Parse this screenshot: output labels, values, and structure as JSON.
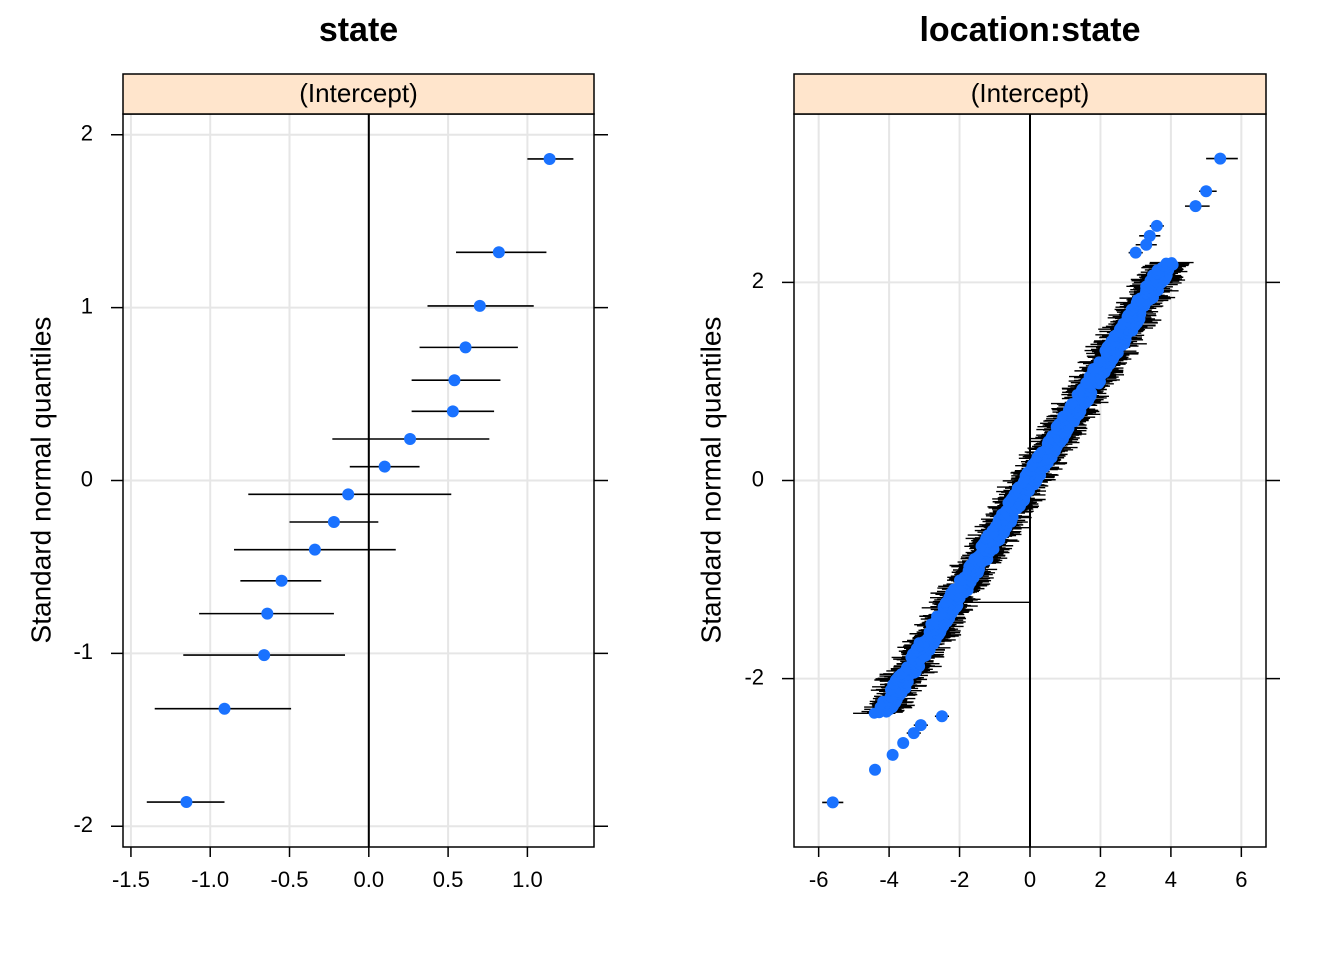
{
  "chart_data": [
    {
      "type": "scatter",
      "title": "state",
      "strip_label": "(Intercept)",
      "ylabel": "Standard normal quantiles",
      "xlabel": "",
      "xlim": [
        -1.55,
        1.42
      ],
      "ylim": [
        -2.12,
        2.12
      ],
      "x_ticks": [
        "-1.5",
        "-1.0",
        "-0.5",
        "0.0",
        "0.5",
        "1.0"
      ],
      "y_ticks": [
        "-2",
        "-1",
        "0",
        "1",
        "2"
      ],
      "reference_line_x": 0,
      "grid": true,
      "points": [
        {
          "x": -1.15,
          "y": -1.86,
          "lo": -1.4,
          "hi": -0.91
        },
        {
          "x": -0.91,
          "y": -1.32,
          "lo": -1.35,
          "hi": -0.49
        },
        {
          "x": -0.66,
          "y": -1.01,
          "lo": -1.17,
          "hi": -0.15
        },
        {
          "x": -0.64,
          "y": -0.77,
          "lo": -1.07,
          "hi": -0.22
        },
        {
          "x": -0.55,
          "y": -0.58,
          "lo": -0.81,
          "hi": -0.3
        },
        {
          "x": -0.34,
          "y": -0.4,
          "lo": -0.85,
          "hi": 0.17
        },
        {
          "x": -0.22,
          "y": -0.24,
          "lo": -0.5,
          "hi": 0.06
        },
        {
          "x": -0.13,
          "y": -0.08,
          "lo": -0.76,
          "hi": 0.52
        },
        {
          "x": 0.1,
          "y": 0.08,
          "lo": -0.12,
          "hi": 0.32
        },
        {
          "x": 0.26,
          "y": 0.24,
          "lo": -0.23,
          "hi": 0.76
        },
        {
          "x": 0.53,
          "y": 0.4,
          "lo": 0.27,
          "hi": 0.79
        },
        {
          "x": 0.54,
          "y": 0.58,
          "lo": 0.27,
          "hi": 0.83
        },
        {
          "x": 0.61,
          "y": 0.77,
          "lo": 0.32,
          "hi": 0.94
        },
        {
          "x": 0.7,
          "y": 1.01,
          "lo": 0.37,
          "hi": 1.04
        },
        {
          "x": 0.82,
          "y": 1.32,
          "lo": 0.55,
          "hi": 1.12
        },
        {
          "x": 1.14,
          "y": 1.86,
          "lo": 1.0,
          "hi": 1.29
        }
      ]
    },
    {
      "type": "scatter",
      "title": "location:state",
      "strip_label": "(Intercept)",
      "ylabel": "Standard normal quantiles",
      "xlabel": "",
      "xlim": [
        -6.7,
        6.7
      ],
      "ylim": [
        -3.7,
        3.7
      ],
      "x_ticks": [
        "-6",
        "-4",
        "-2",
        "0",
        "2",
        "4",
        "6"
      ],
      "y_ticks": [
        "-2",
        "0",
        "2"
      ],
      "reference_line_x": 0,
      "grid": true,
      "points": [
        {
          "x": -5.6,
          "y": -3.25,
          "lo": -5.9,
          "hi": -5.3
        },
        {
          "x": -4.4,
          "y": -2.92,
          "lo": -4.4,
          "hi": -4.4
        },
        {
          "x": -3.9,
          "y": -2.77,
          "lo": -3.9,
          "hi": -3.9
        },
        {
          "x": -3.6,
          "y": -2.65,
          "lo": -3.6,
          "hi": -3.6
        },
        {
          "x": -3.3,
          "y": -2.55,
          "lo": -3.5,
          "hi": -3.1
        },
        {
          "x": -3.1,
          "y": -2.47,
          "lo": -3.3,
          "hi": -2.9
        },
        {
          "x": -2.5,
          "y": -2.38,
          "lo": -2.7,
          "hi": -2.3
        },
        {
          "x": 3.0,
          "y": 2.3,
          "lo": 2.8,
          "hi": 3.2
        },
        {
          "x": 3.3,
          "y": 2.38,
          "lo": 3.0,
          "hi": 3.6
        },
        {
          "x": 3.4,
          "y": 2.47,
          "lo": 3.1,
          "hi": 3.7
        },
        {
          "x": 3.6,
          "y": 2.57,
          "lo": 3.4,
          "hi": 3.8
        },
        {
          "x": 4.7,
          "y": 2.77,
          "lo": 4.4,
          "hi": 5.1
        },
        {
          "x": 5.0,
          "y": 2.92,
          "lo": 4.8,
          "hi": 5.3
        },
        {
          "x": 5.4,
          "y": 3.25,
          "lo": 5.0,
          "hi": 5.9
        }
      ],
      "dense_band": {
        "n": 800,
        "slope": 0.56,
        "y_range": [
          -2.35,
          2.2
        ],
        "ci_halfwidth": 0.45
      }
    }
  ],
  "colors": {
    "point": "#1a72ff",
    "strip_bg": "#ffe5cc",
    "grid": "#e6e6e6",
    "axis": "#000000",
    "errorbar": "#000000"
  }
}
